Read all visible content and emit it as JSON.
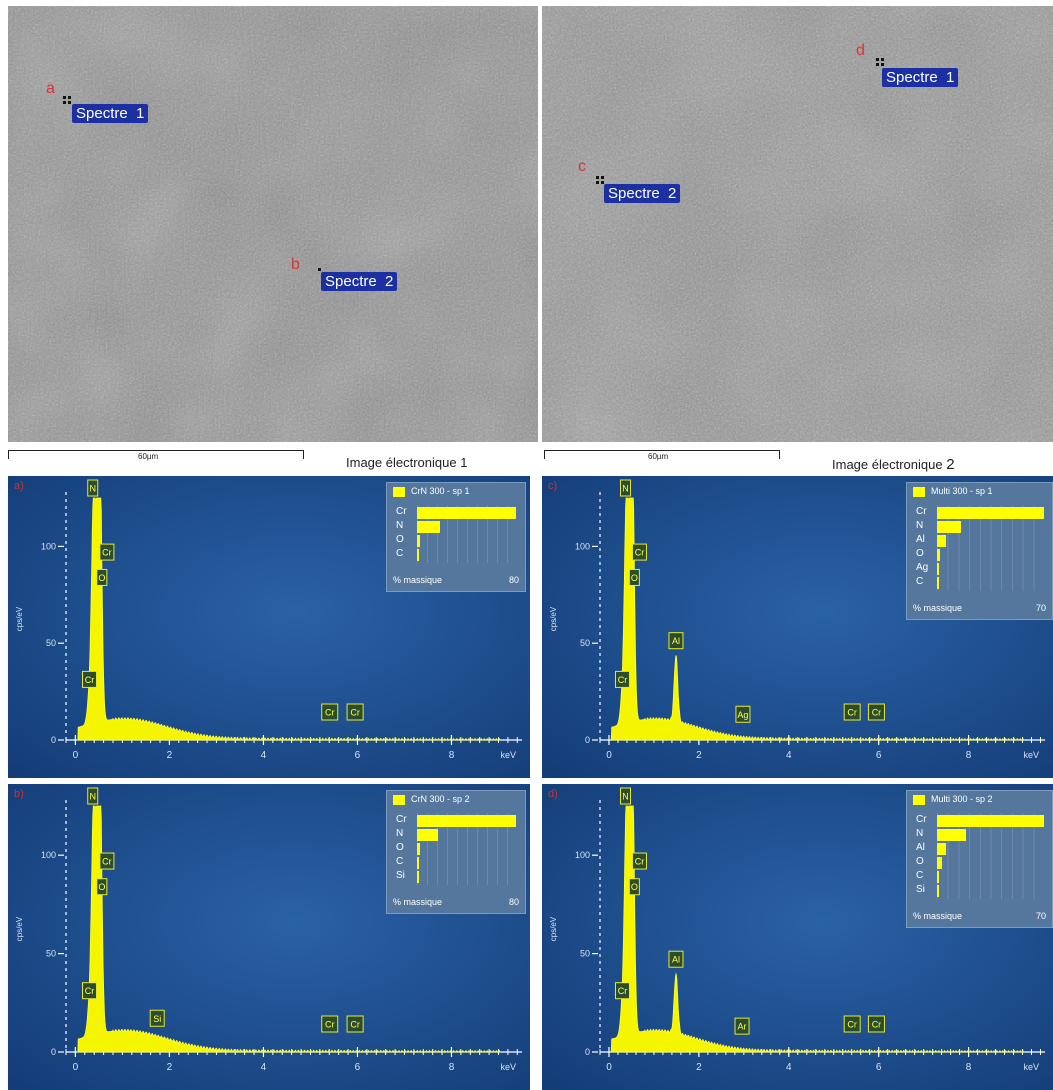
{
  "images": [
    {
      "label_text": "Image électronique",
      "label_num": "1",
      "scale": "60µm",
      "markers": [
        {
          "letter": "a",
          "spectrum": "Spectre  1"
        },
        {
          "letter": "b",
          "spectrum": "Spectre  2"
        }
      ]
    },
    {
      "label_text": "Image électronique",
      "label_num": "2",
      "scale": "60µm",
      "markers": [
        {
          "letter": "d",
          "spectrum": "Spectre  1"
        },
        {
          "letter": "c",
          "spectrum": "Spectre  2"
        }
      ]
    }
  ],
  "chart_data": [
    {
      "type": "area",
      "panel_label": "a)",
      "xlabel": "keV",
      "ylabel": "cps/eV",
      "xlim": [
        -0.2,
        9.5
      ],
      "ylim": [
        0,
        125
      ],
      "xticks": [
        0,
        2,
        4,
        6,
        8
      ],
      "yticks": [
        0,
        50,
        100
      ],
      "peaks": [
        {
          "label": "N",
          "x": 0.39,
          "y": 125
        },
        {
          "label": "Cr",
          "x": 0.5,
          "y": 95
        },
        {
          "label": "O",
          "x": 0.52,
          "y": 85
        },
        {
          "label": "Cr",
          "x": 0.3,
          "y": 22
        }
      ],
      "line_markers": [
        "Cr",
        "Cr"
      ],
      "legend": {
        "title": "CrN 300 - sp 1",
        "elements": [
          "Cr",
          "N",
          "O",
          "C"
        ],
        "values": [
          79,
          18,
          2,
          1
        ],
        "xlabel": "% massique",
        "xmax": "80"
      }
    },
    {
      "type": "area",
      "panel_label": "b)",
      "xlabel": "keV",
      "ylabel": "cps/eV",
      "xlim": [
        -0.2,
        9.5
      ],
      "ylim": [
        0,
        125
      ],
      "xticks": [
        0,
        2,
        4,
        6,
        8
      ],
      "yticks": [
        0,
        50,
        100
      ],
      "peaks": [
        {
          "label": "N",
          "x": 0.39,
          "y": 125
        },
        {
          "label": "Cr",
          "x": 0.5,
          "y": 95
        },
        {
          "label": "O",
          "x": 0.52,
          "y": 85
        },
        {
          "label": "Cr",
          "x": 0.3,
          "y": 22
        },
        {
          "label": "Si",
          "x": 1.74,
          "y": 8
        }
      ],
      "line_markers": [
        "Cr",
        "Cr"
      ],
      "legend": {
        "title": "CrN 300 - sp 2",
        "elements": [
          "Cr",
          "N",
          "O",
          "C",
          "Si"
        ],
        "values": [
          79,
          17,
          2,
          1,
          1
        ],
        "xlabel": "% massique",
        "xmax": "80"
      }
    },
    {
      "type": "area",
      "panel_label": "c)",
      "xlabel": "keV",
      "ylabel": "cps/eV",
      "xlim": [
        -0.2,
        9.7
      ],
      "ylim": [
        0,
        125
      ],
      "xticks": [
        0,
        2,
        4,
        6,
        8
      ],
      "yticks": [
        0,
        50,
        100
      ],
      "peaks": [
        {
          "label": "N",
          "x": 0.39,
          "y": 125
        },
        {
          "label": "Cr",
          "x": 0.5,
          "y": 95
        },
        {
          "label": "O",
          "x": 0.52,
          "y": 85
        },
        {
          "label": "Al",
          "x": 1.49,
          "y": 42
        },
        {
          "label": "Cr",
          "x": 0.3,
          "y": 22
        },
        {
          "label": "Ag",
          "x": 2.98,
          "y": 4
        }
      ],
      "line_markers": [
        "Cr",
        "Cr"
      ],
      "legend": {
        "title": "Multi 300 - sp 1",
        "elements": [
          "Cr",
          "N",
          "Al",
          "O",
          "Ag",
          "C"
        ],
        "values": [
          70,
          16,
          6,
          2,
          1,
          0.5
        ],
        "xlabel": "% massique",
        "xmax": "70"
      }
    },
    {
      "type": "area",
      "panel_label": "d)",
      "xlabel": "keV",
      "ylabel": "cps/eV",
      "xlim": [
        -0.2,
        9.7
      ],
      "ylim": [
        0,
        125
      ],
      "xticks": [
        0,
        2,
        4,
        6,
        8
      ],
      "yticks": [
        0,
        50,
        100
      ],
      "peaks": [
        {
          "label": "N",
          "x": 0.39,
          "y": 125
        },
        {
          "label": "Cr",
          "x": 0.5,
          "y": 95
        },
        {
          "label": "O",
          "x": 0.52,
          "y": 85
        },
        {
          "label": "Al",
          "x": 1.49,
          "y": 38
        },
        {
          "label": "Cr",
          "x": 0.3,
          "y": 22
        },
        {
          "label": "Ar",
          "x": 2.96,
          "y": 4
        }
      ],
      "line_markers": [
        "Cr",
        "Cr"
      ],
      "legend": {
        "title": "Multi 300 - sp 2",
        "elements": [
          "Cr",
          "N",
          "Al",
          "O",
          "C",
          "Si"
        ],
        "values": [
          70,
          19,
          6,
          3,
          1,
          1
        ],
        "xlabel": "% massique",
        "xmax": "70"
      }
    }
  ]
}
